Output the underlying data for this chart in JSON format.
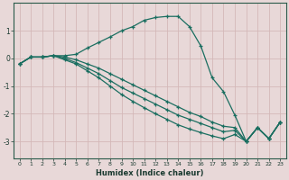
{
  "xlabel": "Humidex (Indice chaleur)",
  "bg_color": "#e8d8d8",
  "grid_color": "#d4b8b8",
  "line_color": "#1a6e60",
  "xlim": [
    -0.5,
    23.5
  ],
  "ylim": [
    -3.6,
    2.0
  ],
  "line1_x": [
    0,
    1,
    2,
    3,
    4,
    5,
    6,
    7,
    8,
    9,
    10,
    11,
    12,
    13,
    14,
    15,
    16,
    17,
    18,
    19,
    20,
    21,
    22,
    23
  ],
  "line1_y": [
    -0.2,
    0.05,
    0.05,
    0.1,
    0.1,
    0.15,
    0.38,
    0.58,
    0.78,
    1.0,
    1.15,
    1.38,
    1.48,
    1.52,
    1.52,
    1.15,
    0.45,
    -0.7,
    -1.2,
    -2.05,
    -3.0,
    -2.5,
    -2.9,
    -2.3
  ],
  "line2_x": [
    0,
    1,
    2,
    3,
    4,
    5,
    6,
    7,
    8,
    9,
    10,
    11,
    12,
    13,
    14,
    15,
    16,
    17,
    18,
    19,
    20,
    21,
    22,
    23
  ],
  "line2_y": [
    -0.2,
    0.05,
    0.05,
    0.1,
    0.05,
    -0.05,
    -0.2,
    -0.35,
    -0.55,
    -0.75,
    -0.95,
    -1.15,
    -1.35,
    -1.55,
    -1.75,
    -1.95,
    -2.1,
    -2.3,
    -2.45,
    -2.5,
    -3.0,
    -2.5,
    -2.9,
    -2.3
  ],
  "line3_x": [
    0,
    1,
    2,
    3,
    4,
    5,
    6,
    7,
    8,
    9,
    10,
    11,
    12,
    13,
    14,
    15,
    16,
    17,
    18,
    19,
    20,
    21,
    22,
    23
  ],
  "line3_y": [
    -0.2,
    0.05,
    0.05,
    0.1,
    0.0,
    -0.15,
    -0.35,
    -0.55,
    -0.8,
    -1.05,
    -1.25,
    -1.45,
    -1.65,
    -1.85,
    -2.05,
    -2.2,
    -2.35,
    -2.5,
    -2.65,
    -2.6,
    -3.0,
    -2.5,
    -2.9,
    -2.3
  ],
  "line4_x": [
    0,
    1,
    2,
    3,
    4,
    5,
    6,
    7,
    8,
    9,
    10,
    11,
    12,
    13,
    14,
    15,
    16,
    17,
    18,
    19,
    20,
    21,
    22,
    23
  ],
  "line4_y": [
    -0.2,
    0.05,
    0.05,
    0.1,
    -0.05,
    -0.2,
    -0.45,
    -0.7,
    -1.0,
    -1.3,
    -1.55,
    -1.78,
    -2.0,
    -2.2,
    -2.4,
    -2.55,
    -2.68,
    -2.8,
    -2.9,
    -2.75,
    -3.0,
    -2.5,
    -2.9,
    -2.3
  ],
  "yticks": [
    -3,
    -2,
    -1,
    0,
    1
  ],
  "xticks": [
    0,
    1,
    2,
    3,
    4,
    5,
    6,
    7,
    8,
    9,
    10,
    11,
    12,
    13,
    14,
    15,
    16,
    17,
    18,
    19,
    20,
    21,
    22,
    23
  ]
}
